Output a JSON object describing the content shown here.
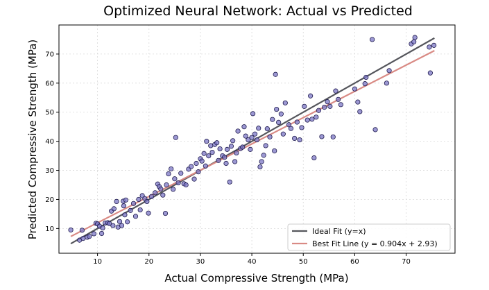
{
  "chart_data": {
    "type": "scatter",
    "title": "Optimized Neural Network: Actual vs Predicted",
    "xlabel": "Actual Compressive Strength (MPa)",
    "ylabel": "Predicted Compressive Strength (MPa)",
    "xlim": [
      2.5,
      79.5
    ],
    "ylim": [
      1.5,
      80.0
    ],
    "xticks": [
      10,
      20,
      30,
      40,
      50,
      60,
      70
    ],
    "yticks": [
      10,
      20,
      30,
      40,
      50,
      60,
      70
    ],
    "grid": true,
    "legend_position": "bottom-right",
    "colors": {
      "points_fill": "#7B76C4",
      "points_stroke": "#1F1B4D",
      "ideal_line": "#55565C",
      "fit_line": "#D98A84",
      "grid": "#D9D9D9"
    },
    "lines": [
      {
        "name": "Ideal Fit (y=x)",
        "x": [
          4.8,
          75.5
        ],
        "y": [
          4.8,
          75.5
        ]
      },
      {
        "name": "Best Fit Line (y = 0.904x + 2.93)",
        "x": [
          4.8,
          75.5
        ],
        "y": [
          7.27,
          71.18
        ]
      }
    ],
    "points": [
      [
        4.8,
        9.5
      ],
      [
        6.5,
        6.0
      ],
      [
        7.0,
        9.4
      ],
      [
        7.2,
        6.6
      ],
      [
        8.0,
        7.0
      ],
      [
        8.4,
        7.3
      ],
      [
        9.3,
        8.2
      ],
      [
        9.7,
        11.8
      ],
      [
        10.0,
        11.6
      ],
      [
        10.4,
        10.8
      ],
      [
        10.8,
        8.3
      ],
      [
        11.0,
        10.2
      ],
      [
        11.5,
        11.9
      ],
      [
        12.0,
        12.0
      ],
      [
        12.3,
        11.7
      ],
      [
        12.7,
        16.0
      ],
      [
        13.0,
        11.0
      ],
      [
        13.2,
        16.8
      ],
      [
        13.7,
        19.3
      ],
      [
        14.0,
        10.5
      ],
      [
        14.3,
        12.4
      ],
      [
        14.7,
        11.0
      ],
      [
        15.0,
        19.4
      ],
      [
        15.1,
        17.8
      ],
      [
        15.3,
        14.7
      ],
      [
        15.5,
        19.8
      ],
      [
        15.8,
        12.3
      ],
      [
        16.4,
        16.2
      ],
      [
        17.0,
        18.6
      ],
      [
        17.4,
        14.2
      ],
      [
        18.0,
        20.0
      ],
      [
        18.3,
        16.4
      ],
      [
        18.7,
        21.3
      ],
      [
        19.2,
        20.3
      ],
      [
        19.6,
        19.3
      ],
      [
        19.9,
        15.3
      ],
      [
        20.5,
        21.0
      ],
      [
        21.2,
        22.3
      ],
      [
        21.7,
        25.3
      ],
      [
        22.0,
        24.4
      ],
      [
        22.3,
        23.6
      ],
      [
        22.7,
        21.5
      ],
      [
        23.2,
        15.2
      ],
      [
        23.4,
        25.0
      ],
      [
        23.8,
        28.8
      ],
      [
        24.3,
        30.5
      ],
      [
        24.7,
        23.5
      ],
      [
        25.0,
        27.1
      ],
      [
        25.2,
        41.3
      ],
      [
        25.7,
        25.7
      ],
      [
        26.2,
        29.0
      ],
      [
        26.8,
        25.4
      ],
      [
        27.2,
        25.0
      ],
      [
        27.7,
        30.4
      ],
      [
        28.2,
        31.3
      ],
      [
        28.8,
        27.0
      ],
      [
        29.2,
        32.4
      ],
      [
        29.6,
        29.5
      ],
      [
        30.0,
        34.0
      ],
      [
        30.3,
        33.2
      ],
      [
        30.7,
        35.8
      ],
      [
        31.0,
        31.5
      ],
      [
        31.2,
        40.0
      ],
      [
        31.6,
        35.0
      ],
      [
        32.0,
        38.5
      ],
      [
        32.3,
        36.2
      ],
      [
        32.8,
        38.9
      ],
      [
        33.2,
        39.5
      ],
      [
        33.5,
        33.4
      ],
      [
        33.8,
        37.4
      ],
      [
        34.3,
        35.0
      ],
      [
        34.7,
        34.5
      ],
      [
        35.0,
        32.4
      ],
      [
        35.2,
        37.2
      ],
      [
        35.7,
        26.0
      ],
      [
        36.0,
        38.3
      ],
      [
        36.3,
        40.2
      ],
      [
        36.7,
        33.0
      ],
      [
        37.0,
        36.0
      ],
      [
        37.3,
        43.5
      ],
      [
        37.8,
        37.5
      ],
      [
        38.2,
        38.0
      ],
      [
        38.5,
        45.0
      ],
      [
        38.8,
        41.8
      ],
      [
        39.3,
        40.5
      ],
      [
        39.7,
        37.2
      ],
      [
        40.0,
        41.3
      ],
      [
        40.2,
        49.5
      ],
      [
        40.6,
        42.5
      ],
      [
        41.0,
        40.5
      ],
      [
        41.3,
        44.5
      ],
      [
        41.6,
        31.2
      ],
      [
        41.9,
        33.0
      ],
      [
        42.3,
        35.2
      ],
      [
        42.7,
        38.5
      ],
      [
        43.0,
        44.3
      ],
      [
        43.5,
        41.5
      ],
      [
        44.0,
        47.5
      ],
      [
        44.4,
        36.7
      ],
      [
        44.6,
        63.0
      ],
      [
        44.8,
        51.0
      ],
      [
        45.2,
        46.5
      ],
      [
        45.7,
        49.4
      ],
      [
        46.1,
        42.5
      ],
      [
        46.5,
        53.2
      ],
      [
        47.2,
        45.7
      ],
      [
        47.6,
        44.4
      ],
      [
        48.3,
        41.0
      ],
      [
        48.8,
        46.6
      ],
      [
        49.3,
        40.5
      ],
      [
        49.7,
        44.7
      ],
      [
        50.2,
        52.0
      ],
      [
        50.8,
        47.3
      ],
      [
        51.4,
        55.6
      ],
      [
        51.7,
        47.6
      ],
      [
        52.1,
        34.3
      ],
      [
        52.5,
        48.3
      ],
      [
        53.0,
        50.6
      ],
      [
        53.6,
        41.6
      ],
      [
        54.1,
        51.7
      ],
      [
        54.7,
        53.6
      ],
      [
        55.2,
        52.0
      ],
      [
        55.8,
        41.5
      ],
      [
        56.3,
        57.3
      ],
      [
        56.8,
        54.4
      ],
      [
        57.3,
        52.6
      ],
      [
        60.0,
        58.0
      ],
      [
        60.6,
        53.5
      ],
      [
        61.0,
        50.2
      ],
      [
        62.0,
        59.8
      ],
      [
        62.2,
        62.0
      ],
      [
        63.4,
        75.0
      ],
      [
        64.0,
        44.0
      ],
      [
        66.2,
        60.0
      ],
      [
        66.7,
        64.3
      ],
      [
        71.0,
        73.5
      ],
      [
        71.5,
        74.2
      ],
      [
        71.7,
        75.7
      ],
      [
        74.5,
        72.4
      ],
      [
        74.7,
        63.5
      ],
      [
        75.4,
        73.0
      ]
    ]
  }
}
